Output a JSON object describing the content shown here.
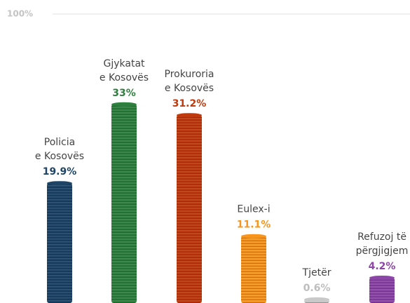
{
  "chart_data": {
    "type": "bar",
    "ymax_label": "100%",
    "categories": [
      [
        "Policia",
        "e Kosovës"
      ],
      [
        "Gjykatat",
        "e Kosovës"
      ],
      [
        "Prokuroria",
        "e Kosovës"
      ],
      [
        "Eulex-i"
      ],
      [
        "Tjetër"
      ],
      [
        "Refuzoj të",
        "përgjigjem"
      ]
    ],
    "values": [
      19.9,
      33,
      31.2,
      11.1,
      0.6,
      4.2
    ],
    "value_labels": [
      "19.9%",
      "33%",
      "31.2%",
      "11.1%",
      "0.6%",
      "4.2%"
    ],
    "colors": [
      "#1d4466",
      "#2f7f3e",
      "#bf3a0c",
      "#f7951c",
      "#c9c9c9",
      "#8c46a8"
    ],
    "ylim": [
      0,
      48
    ]
  }
}
